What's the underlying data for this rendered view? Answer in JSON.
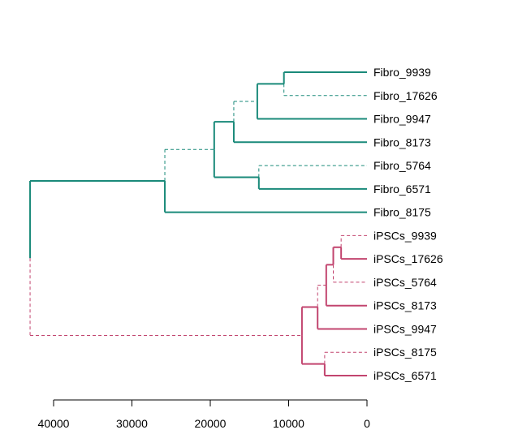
{
  "tree": {
    "axis": {
      "ticks": [
        40000,
        30000,
        20000,
        10000,
        0
      ],
      "ticks_text": [
        "40000",
        "30000",
        "20000",
        "10000",
        "0"
      ]
    },
    "colors": {
      "fibro": "#1a8a7a",
      "ipsc": "#c2456f"
    },
    "leaves": [
      {
        "label": "Fibro_9939",
        "group": "fibro"
      },
      {
        "label": "Fibro_17626",
        "group": "fibro"
      },
      {
        "label": "Fibro_9947",
        "group": "fibro"
      },
      {
        "label": "Fibro_8173",
        "group": "fibro"
      },
      {
        "label": "Fibro_5764",
        "group": "fibro"
      },
      {
        "label": "Fibro_6571",
        "group": "fibro"
      },
      {
        "label": "Fibro_8175",
        "group": "fibro"
      },
      {
        "label": "iPSCs_9939",
        "group": "ipsc"
      },
      {
        "label": "iPSCs_17626",
        "group": "ipsc"
      },
      {
        "label": "iPSCs_5764",
        "group": "ipsc"
      },
      {
        "label": "iPSCs_8173",
        "group": "ipsc"
      },
      {
        "label": "iPSCs_9947",
        "group": "ipsc"
      },
      {
        "label": "iPSCs_8175",
        "group": "ipsc"
      },
      {
        "label": "iPSCs_6571",
        "group": "ipsc"
      }
    ],
    "merges": [
      {
        "id": "A",
        "height": 10600,
        "children": [
          "L0",
          "L1"
        ],
        "dashed": [
          false,
          true
        ],
        "group": "fibro"
      },
      {
        "id": "B",
        "height": 14000,
        "children": [
          "A",
          "L2"
        ],
        "dashed": [
          false,
          false
        ],
        "group": "fibro"
      },
      {
        "id": "C",
        "height": 13800,
        "children": [
          "L4",
          "L5"
        ],
        "dashed": [
          true,
          false
        ],
        "group": "fibro"
      },
      {
        "id": "D",
        "height": 17000,
        "children": [
          "B",
          "L3"
        ],
        "dashed": [
          true,
          false
        ],
        "group": "fibro"
      },
      {
        "id": "E",
        "height": 19500,
        "children": [
          "D",
          "C"
        ],
        "dashed": [
          false,
          false
        ],
        "group": "fibro"
      },
      {
        "id": "F",
        "height": 25800,
        "children": [
          "E",
          "L6"
        ],
        "dashed": [
          true,
          false
        ],
        "group": "fibro"
      },
      {
        "id": "G",
        "height": 3300,
        "children": [
          "L7",
          "L8"
        ],
        "dashed": [
          true,
          false
        ],
        "group": "ipsc"
      },
      {
        "id": "H",
        "height": 4300,
        "children": [
          "G",
          "L9"
        ],
        "dashed": [
          false,
          true
        ],
        "group": "ipsc"
      },
      {
        "id": "I",
        "height": 5200,
        "children": [
          "H",
          "L10"
        ],
        "dashed": [
          false,
          false
        ],
        "group": "ipsc"
      },
      {
        "id": "J",
        "height": 6300,
        "children": [
          "I",
          "L11"
        ],
        "dashed": [
          true,
          false
        ],
        "group": "ipsc"
      },
      {
        "id": "K",
        "height": 5400,
        "children": [
          "L12",
          "L13"
        ],
        "dashed": [
          true,
          false
        ],
        "group": "ipsc"
      },
      {
        "id": "M",
        "height": 8300,
        "children": [
          "J",
          "K"
        ],
        "dashed": [
          false,
          false
        ],
        "group": "ipsc"
      },
      {
        "id": "R",
        "height": 43000,
        "children": [
          "F",
          "M"
        ],
        "dashed": [
          false,
          true
        ],
        "group": "mixed"
      }
    ]
  }
}
